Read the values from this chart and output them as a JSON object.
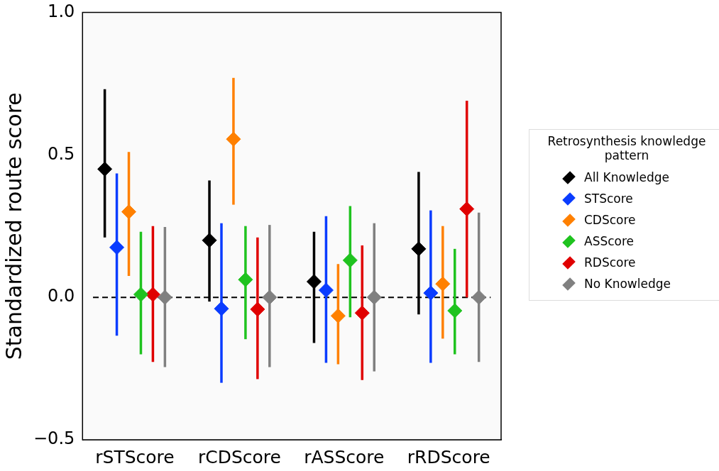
{
  "chart_data": {
    "type": "scatter",
    "ylabel": "Standardized route score",
    "legend_title": "Retrosynthesis knowledge pattern",
    "legend": "right",
    "marker": "diamond",
    "categories": [
      "rSTScore",
      "rCDScore",
      "rASScore",
      "rRDScore"
    ],
    "ylim": [
      -0.5,
      1.0
    ],
    "yticks": [
      {
        "value": -0.5,
        "label": "−0.5"
      },
      {
        "value": 0,
        "label": "0.0"
      },
      0.5,
      {
        "value": 1,
        "label": "1.0"
      }
    ],
    "ref_lines": [
      {
        "axis": "y",
        "value": 0,
        "color": "#000000",
        "line_style": "dashed"
      }
    ],
    "series": [
      {
        "name": "All Knowledge",
        "color": "#000000",
        "values": [
          0.45,
          0.2,
          0.055,
          0.17
        ],
        "errors": [
          [
            0.21,
            0.73
          ],
          [
            -0.015,
            0.41
          ],
          [
            -0.16,
            0.23
          ],
          [
            -0.06,
            0.44
          ]
        ]
      },
      {
        "name": "STScore",
        "color": "#0a3cff",
        "values": [
          0.175,
          -0.04,
          0.025,
          0.015
        ],
        "errors": [
          [
            -0.135,
            0.435
          ],
          [
            -0.3,
            0.26
          ],
          [
            -0.23,
            0.285
          ],
          [
            -0.23,
            0.305
          ]
        ]
      },
      {
        "name": "CDScore",
        "color": "#ff8000",
        "values": [
          0.3,
          0.555,
          -0.065,
          0.047
        ],
        "errors": [
          [
            0.075,
            0.51
          ],
          [
            0.325,
            0.77
          ],
          [
            -0.235,
            0.117
          ],
          [
            -0.145,
            0.25
          ]
        ]
      },
      {
        "name": "ASScore",
        "color": "#1fc31f",
        "values": [
          0.01,
          0.062,
          0.13,
          -0.047
        ],
        "errors": [
          [
            -0.2,
            0.23
          ],
          [
            -0.147,
            0.25
          ],
          [
            -0.07,
            0.32
          ],
          [
            -0.2,
            0.17
          ]
        ]
      },
      {
        "name": "RDScore",
        "color": "#e00000",
        "values": [
          0.01,
          -0.042,
          -0.055,
          0.31
        ],
        "errors": [
          [
            -0.227,
            0.25
          ],
          [
            -0.287,
            0.21
          ],
          [
            -0.29,
            0.182
          ],
          [
            0,
            0.69
          ]
        ]
      },
      {
        "name": "No Knowledge",
        "color": "#808080",
        "values": [
          0,
          0,
          0,
          0
        ],
        "errors": [
          [
            -0.245,
            0.247
          ],
          [
            -0.245,
            0.254
          ],
          [
            -0.26,
            0.26
          ],
          [
            -0.227,
            0.297
          ]
        ]
      }
    ]
  }
}
